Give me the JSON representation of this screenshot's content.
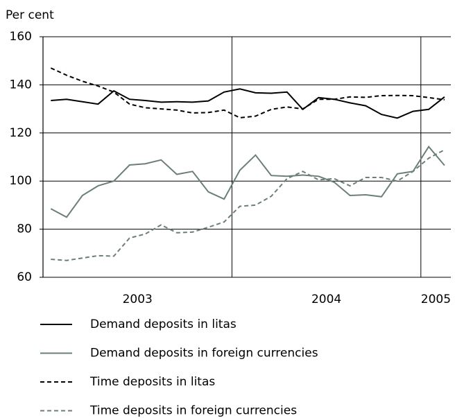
{
  "chart_data": {
    "type": "line",
    "y_axis_label": "Per cent",
    "categories": [
      null,
      null,
      null,
      null,
      null,
      null,
      null,
      null,
      null,
      null,
      null,
      null,
      null,
      null,
      null,
      null,
      null,
      null,
      null,
      null,
      null,
      null,
      null,
      null,
      null,
      null
    ],
    "x_groups": [
      {
        "label": "2003",
        "months": 12
      },
      {
        "label": "2004",
        "months": 12
      },
      {
        "label": "2005",
        "months": 2
      }
    ],
    "ylim": [
      60,
      160
    ],
    "yticks": [
      60,
      80,
      100,
      120,
      140,
      160
    ],
    "grid": true,
    "legend": "bottom",
    "series": [
      {
        "name": "Demand deposits in litas",
        "color": "#000000",
        "dash": false,
        "values": [
          133.5,
          134,
          133,
          132,
          137.5,
          134,
          133.5,
          132.8,
          133,
          132.8,
          133.3,
          137,
          138.3,
          136.7,
          136.5,
          137,
          129.8,
          134.7,
          134,
          132.5,
          131.3,
          127.7,
          126.2,
          129,
          129.8,
          135
        ]
      },
      {
        "name": "Demand deposits in foreign currencies",
        "color": "#6b7f77",
        "dash": false,
        "values": [
          88.5,
          85,
          94,
          98,
          100,
          106.7,
          107.2,
          108.8,
          102.8,
          104,
          95.5,
          92.5,
          104.5,
          110.8,
          102.3,
          102,
          102.5,
          102,
          99.5,
          94,
          94.3,
          93.5,
          103,
          104,
          114.3,
          106.5
        ]
      },
      {
        "name": "Time deposits in litas",
        "color": "#000000",
        "dash": true,
        "values": [
          147,
          144,
          141.5,
          139.5,
          137,
          132,
          130.5,
          130,
          129.5,
          128.3,
          128.5,
          129.5,
          126.3,
          127,
          129.8,
          130.8,
          130,
          134,
          134,
          135,
          134.8,
          135.5,
          135.6,
          135.5,
          134.7,
          133.8
        ]
      },
      {
        "name": "Time deposits in foreign currencies",
        "color": "#6b7f77",
        "dash": true,
        "values": [
          67.5,
          67,
          68,
          69,
          68.8,
          76.3,
          78,
          81.8,
          78.5,
          78.8,
          80.8,
          83,
          89.5,
          90,
          93.7,
          101,
          104,
          100.5,
          101,
          98,
          101.5,
          101.5,
          100,
          104,
          109.5,
          113
        ]
      }
    ]
  }
}
